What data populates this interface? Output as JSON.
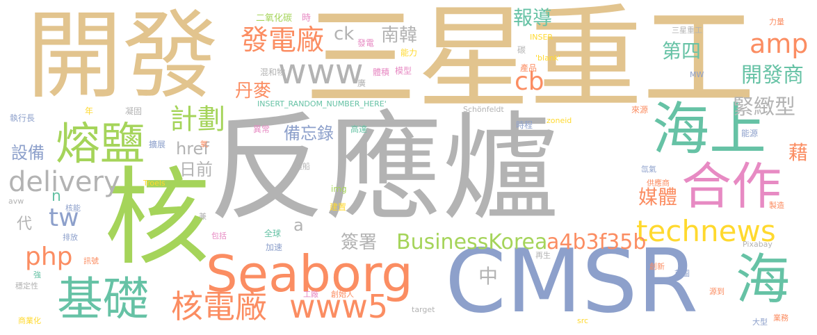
{
  "palette": {
    "tan": "#e2c48e",
    "gray": "#b3b3b3",
    "green": "#a5d45a",
    "orange": "#fb8d62",
    "blue": "#8da0cb",
    "teal": "#66c2a5",
    "pink": "#e78ac3",
    "yellow": "#ffd92f"
  },
  "words": [
    {
      "text": "反應爐",
      "color": "gray"
    },
    {
      "text": "三星重工",
      "color": "tan"
    },
    {
      "text": "開發",
      "color": "tan"
    },
    {
      "text": "核",
      "color": "green"
    },
    {
      "text": "CMSR",
      "color": "blue"
    },
    {
      "text": "Seaborg",
      "color": "orange"
    },
    {
      "text": "海上",
      "color": "teal"
    },
    {
      "text": "合作",
      "color": "pink"
    },
    {
      "text": "海",
      "color": "teal"
    },
    {
      "text": "熔鹽",
      "color": "green"
    },
    {
      "text": "基礎",
      "color": "teal"
    },
    {
      "text": "www",
      "color": "gray"
    },
    {
      "text": "technews",
      "color": "yellow"
    },
    {
      "text": "核電廠",
      "color": "orange"
    },
    {
      "text": "www5",
      "color": "orange"
    },
    {
      "text": "amp",
      "color": "orange"
    },
    {
      "text": "delivery",
      "color": "gray"
    },
    {
      "text": "發電廠",
      "color": "orange"
    },
    {
      "text": "cb",
      "color": "orange"
    },
    {
      "text": "tw",
      "color": "blue"
    },
    {
      "text": "php",
      "color": "orange"
    },
    {
      "text": "計劃",
      "color": "green"
    },
    {
      "text": "a4b3f35b",
      "color": "orange"
    },
    {
      "text": "BusinessKorea",
      "color": "green"
    },
    {
      "text": "開發商",
      "color": "teal"
    },
    {
      "text": "緊緻型",
      "color": "gray"
    },
    {
      "text": "第四",
      "color": "teal"
    },
    {
      "text": "報導",
      "color": "teal"
    },
    {
      "text": "南韓",
      "color": "gray"
    },
    {
      "text": "ck",
      "color": "gray"
    },
    {
      "text": "媒體",
      "color": "orange"
    },
    {
      "text": "備忘錄",
      "color": "blue"
    },
    {
      "text": "丹麥",
      "color": "orange"
    },
    {
      "text": "href",
      "color": "gray"
    },
    {
      "text": "日前",
      "color": "gray"
    },
    {
      "text": "設備",
      "color": "blue"
    },
    {
      "text": "簽署",
      "color": "gray"
    },
    {
      "text": "中",
      "color": "gray"
    },
    {
      "text": "藉",
      "color": "orange"
    },
    {
      "text": "a",
      "color": "gray"
    },
    {
      "text": "n",
      "color": "teal"
    },
    {
      "text": "代",
      "color": "gray"
    },
    {
      "text": "二氧化碳",
      "color": "green"
    },
    {
      "text": "時",
      "color": "pink"
    },
    {
      "text": "發電",
      "color": "pink"
    },
    {
      "text": "能力",
      "color": "yellow"
    },
    {
      "text": "混和物",
      "color": "gray"
    },
    {
      "text": "體積",
      "color": "pink"
    },
    {
      "text": "模型",
      "color": "pink"
    },
    {
      "text": "廣",
      "color": "gray"
    },
    {
      "text": "INSER",
      "color": "yellow"
    },
    {
      "text": "'blank'",
      "color": "yellow"
    },
    {
      "text": "碳",
      "color": "gray"
    },
    {
      "text": "產品",
      "color": "orange"
    },
    {
      "text": "MW",
      "color": "blue"
    },
    {
      "text": "三星重工",
      "color": "gray"
    },
    {
      "text": "力量",
      "color": "orange"
    },
    {
      "text": "INSERT_RANDOM_NUMBER_HERE'",
      "color": "teal"
    },
    {
      "text": "執行長",
      "color": "blue"
    },
    {
      "text": "年",
      "color": "yellow"
    },
    {
      "text": "凝固",
      "color": "gray"
    },
    {
      "text": "Schönfeldt",
      "color": "gray"
    },
    {
      "text": "zoneid",
      "color": "yellow"
    },
    {
      "text": "異常",
      "color": "pink"
    },
    {
      "text": "高達",
      "color": "teal"
    },
    {
      "text": "時程",
      "color": "blue"
    },
    {
      "text": "來源",
      "color": "orange"
    },
    {
      "text": "能源",
      "color": "blue"
    },
    {
      "text": "擴展",
      "color": "blue"
    },
    {
      "text": "氧",
      "color": "orange"
    },
    {
      "text": "造船",
      "color": "gray"
    },
    {
      "text": "氙氣",
      "color": "blue"
    },
    {
      "text": "供應商",
      "color": "orange"
    },
    {
      "text": "製造",
      "color": "orange"
    },
    {
      "text": "Troels",
      "color": "yellow"
    },
    {
      "text": "img",
      "color": "green"
    },
    {
      "text": "avw",
      "color": "gray"
    },
    {
      "text": "核能",
      "color": "blue"
    },
    {
      "text": "建置",
      "color": "yellow"
    },
    {
      "text": "兼",
      "color": "gray"
    },
    {
      "text": "排放",
      "color": "blue"
    },
    {
      "text": "包括",
      "color": "pink"
    },
    {
      "text": "全球",
      "color": "teal"
    },
    {
      "text": "加速",
      "color": "blue"
    },
    {
      "text": "Pixabay",
      "color": "gray"
    },
    {
      "text": "再生",
      "color": "gray"
    },
    {
      "text": "訊號",
      "color": "orange"
    },
    {
      "text": "創新",
      "color": "orange"
    },
    {
      "text": "強",
      "color": "teal"
    },
    {
      "text": "首圖",
      "color": "blue"
    },
    {
      "text": "穩定性",
      "color": "gray"
    },
    {
      "text": "工廠",
      "color": "pink"
    },
    {
      "text": "創始人",
      "color": "orange"
    },
    {
      "text": "源到",
      "color": "orange"
    },
    {
      "text": "商業化",
      "color": "yellow"
    },
    {
      "text": "target",
      "color": "gray"
    },
    {
      "text": "src",
      "color": "yellow"
    },
    {
      "text": "大型",
      "color": "blue"
    },
    {
      "text": "業務",
      "color": "orange"
    }
  ]
}
